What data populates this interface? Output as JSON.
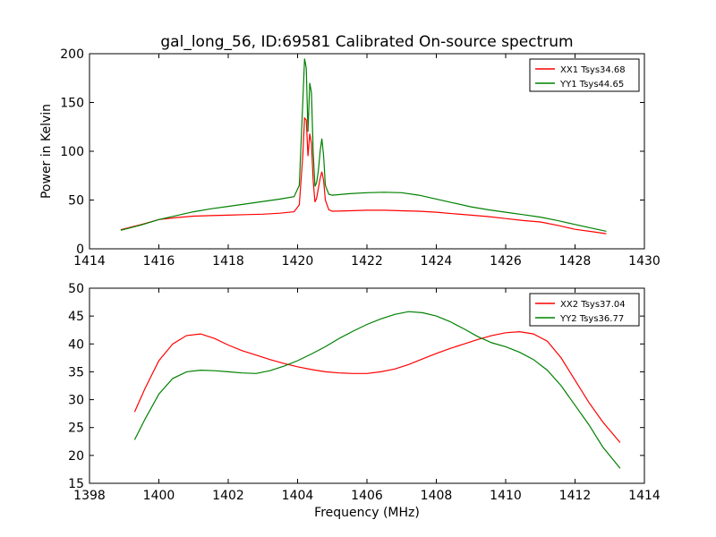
{
  "figure": {
    "title": "gal_long_56, ID:69581 Calibrated On-source spectrum",
    "xlabel": "Frequency (MHz)",
    "ylabel_top": "Power in Kelvin"
  },
  "chart_data": [
    {
      "type": "line",
      "title": "gal_long_56, ID:69581 Calibrated On-source spectrum",
      "xlabel": "",
      "ylabel": "Power in Kelvin",
      "xlim": [
        1414,
        1430
      ],
      "ylim": [
        0,
        200
      ],
      "xticks": [
        1414,
        1416,
        1418,
        1420,
        1422,
        1424,
        1426,
        1428,
        1430
      ],
      "yticks": [
        0,
        50,
        100,
        150,
        200
      ],
      "legend_position": "top-right",
      "grid": false,
      "series": [
        {
          "name": "XX1 Tsys34.68",
          "color": "#ff0000",
          "x": [
            1414.9,
            1415.5,
            1416.0,
            1416.5,
            1417.0,
            1417.5,
            1418.0,
            1418.5,
            1419.0,
            1419.5,
            1419.9,
            1420.05,
            1420.15,
            1420.2,
            1420.25,
            1420.3,
            1420.35,
            1420.4,
            1420.45,
            1420.5,
            1420.55,
            1420.6,
            1420.65,
            1420.7,
            1420.75,
            1420.8,
            1420.9,
            1421.0,
            1421.5,
            1422.0,
            1422.5,
            1423.0,
            1423.5,
            1424.0,
            1424.5,
            1425.0,
            1425.5,
            1426.0,
            1426.5,
            1427.0,
            1427.5,
            1428.0,
            1428.5,
            1428.9
          ],
          "y": [
            19.5,
            25.0,
            30.0,
            32.0,
            33.5,
            34.0,
            34.5,
            35.0,
            35.5,
            36.5,
            38.0,
            45.0,
            95.0,
            134.0,
            132.0,
            95.0,
            118.0,
            108.0,
            70.0,
            48.0,
            52.0,
            62.0,
            72.0,
            79.0,
            70.0,
            50.0,
            40.0,
            38.5,
            39.0,
            39.5,
            39.5,
            39.0,
            38.5,
            37.5,
            36.0,
            34.5,
            33.0,
            31.0,
            29.0,
            27.5,
            24.0,
            20.0,
            17.5,
            15.5
          ]
        },
        {
          "name": "YY1 Tsys44.65",
          "color": "#008000",
          "x": [
            1414.9,
            1415.5,
            1416.0,
            1416.5,
            1417.0,
            1417.5,
            1418.0,
            1418.5,
            1419.0,
            1419.5,
            1419.9,
            1420.05,
            1420.15,
            1420.2,
            1420.25,
            1420.3,
            1420.35,
            1420.4,
            1420.45,
            1420.5,
            1420.55,
            1420.6,
            1420.65,
            1420.7,
            1420.75,
            1420.8,
            1420.9,
            1421.0,
            1421.5,
            1422.0,
            1422.5,
            1423.0,
            1423.5,
            1424.0,
            1424.5,
            1425.0,
            1425.5,
            1426.0,
            1426.5,
            1427.0,
            1427.5,
            1428.0,
            1428.5,
            1428.9
          ],
          "y": [
            19.0,
            24.5,
            30.0,
            34.0,
            38.0,
            41.0,
            43.5,
            46.0,
            48.5,
            51.0,
            53.5,
            65.0,
            150.0,
            195.0,
            185.0,
            120.0,
            170.0,
            160.0,
            100.0,
            64.0,
            68.0,
            80.0,
            100.0,
            113.0,
            95.0,
            65.0,
            56.0,
            55.0,
            56.5,
            57.5,
            58.0,
            57.5,
            55.0,
            51.0,
            47.0,
            43.0,
            40.0,
            37.5,
            35.0,
            32.5,
            29.0,
            25.0,
            21.0,
            18.0
          ]
        }
      ]
    },
    {
      "type": "line",
      "title": "",
      "xlabel": "Frequency (MHz)",
      "ylabel": "",
      "xlim": [
        1398,
        1414
      ],
      "ylim": [
        15,
        50
      ],
      "xticks": [
        1398,
        1400,
        1402,
        1404,
        1406,
        1408,
        1410,
        1412,
        1414
      ],
      "yticks": [
        15,
        20,
        25,
        30,
        35,
        40,
        45,
        50
      ],
      "legend_position": "top-right",
      "grid": false,
      "series": [
        {
          "name": "XX2 Tsys37.04",
          "color": "#ff0000",
          "x": [
            1399.3,
            1399.6,
            1400.0,
            1400.4,
            1400.8,
            1401.2,
            1401.6,
            1402.0,
            1402.4,
            1402.8,
            1403.2,
            1403.6,
            1404.0,
            1404.4,
            1404.8,
            1405.2,
            1405.6,
            1406.0,
            1406.4,
            1406.8,
            1407.2,
            1407.6,
            1408.0,
            1408.4,
            1408.8,
            1409.2,
            1409.6,
            1410.0,
            1410.4,
            1410.8,
            1411.2,
            1411.6,
            1412.0,
            1412.4,
            1412.8,
            1413.3
          ],
          "y": [
            27.8,
            32.0,
            37.0,
            40.0,
            41.5,
            41.8,
            41.0,
            39.8,
            38.8,
            38.0,
            37.2,
            36.5,
            35.9,
            35.4,
            35.0,
            34.8,
            34.7,
            34.7,
            35.0,
            35.5,
            36.3,
            37.3,
            38.3,
            39.2,
            40.0,
            40.8,
            41.5,
            42.0,
            42.2,
            41.8,
            40.5,
            37.5,
            33.5,
            29.5,
            26.0,
            22.3
          ]
        },
        {
          "name": "YY2 Tsys36.77",
          "color": "#008000",
          "x": [
            1399.3,
            1399.6,
            1400.0,
            1400.4,
            1400.8,
            1401.2,
            1401.6,
            1402.0,
            1402.4,
            1402.8,
            1403.2,
            1403.6,
            1404.0,
            1404.4,
            1404.8,
            1405.2,
            1405.6,
            1406.0,
            1406.4,
            1406.8,
            1407.2,
            1407.6,
            1408.0,
            1408.4,
            1408.8,
            1409.2,
            1409.6,
            1410.0,
            1410.4,
            1410.8,
            1411.2,
            1411.6,
            1412.0,
            1412.4,
            1412.8,
            1413.3
          ],
          "y": [
            22.8,
            26.5,
            31.0,
            33.8,
            35.0,
            35.3,
            35.2,
            35.0,
            34.8,
            34.7,
            35.2,
            36.0,
            37.0,
            38.2,
            39.5,
            41.0,
            42.3,
            43.5,
            44.5,
            45.3,
            45.8,
            45.6,
            45.0,
            44.0,
            42.7,
            41.3,
            40.2,
            39.5,
            38.5,
            37.2,
            35.3,
            32.5,
            29.0,
            25.5,
            21.5,
            17.7
          ]
        }
      ]
    }
  ]
}
